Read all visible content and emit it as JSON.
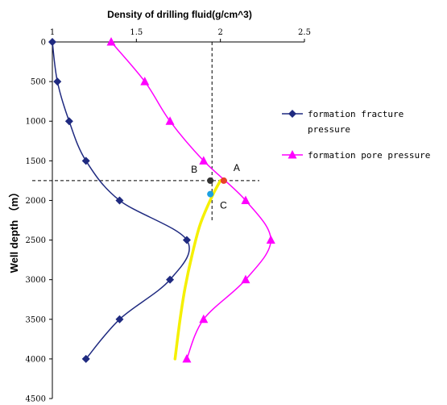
{
  "chart_data": {
    "type": "line",
    "title": "Density of drilling fluid(g/cm^3)",
    "xlabel": "",
    "ylabel": "Well depth （m）",
    "xlim": [
      1,
      2.5
    ],
    "ylim": [
      0,
      4500
    ],
    "x_ticks": [
      "1",
      "1.5",
      "2",
      "2.5"
    ],
    "y_ticks": [
      "0",
      "500",
      "1000",
      "1500",
      "2000",
      "2500",
      "3000",
      "3500",
      "4000",
      "4500"
    ],
    "y_inverted": true,
    "grid": false,
    "legend_position": "right",
    "series": [
      {
        "name": "formation fracture\npressure",
        "color": "#1f2a80",
        "marker": "diamond",
        "points": [
          {
            "x": 1.0,
            "y": 0
          },
          {
            "x": 1.03,
            "y": 500
          },
          {
            "x": 1.1,
            "y": 1000
          },
          {
            "x": 1.2,
            "y": 1500
          },
          {
            "x": 1.4,
            "y": 2000
          },
          {
            "x": 1.8,
            "y": 2500
          },
          {
            "x": 1.7,
            "y": 3000
          },
          {
            "x": 1.4,
            "y": 3500
          },
          {
            "x": 1.2,
            "y": 4000
          }
        ]
      },
      {
        "name": "formation pore pressure",
        "color": "#ff00ff",
        "marker": "triangle",
        "points": [
          {
            "x": 1.35,
            "y": 0
          },
          {
            "x": 1.55,
            "y": 500
          },
          {
            "x": 1.7,
            "y": 1000
          },
          {
            "x": 1.9,
            "y": 1500
          },
          {
            "x": 2.15,
            "y": 2000
          },
          {
            "x": 2.3,
            "y": 2500
          },
          {
            "x": 2.15,
            "y": 3000
          },
          {
            "x": 1.9,
            "y": 3500
          },
          {
            "x": 1.8,
            "y": 4000
          }
        ]
      }
    ],
    "unlabeled_curve": {
      "color": "#f5f000",
      "points": [
        {
          "x": 2.0,
          "y": 1750
        },
        {
          "x": 1.95,
          "y": 1950
        },
        {
          "x": 1.88,
          "y": 2300
        },
        {
          "x": 1.83,
          "y": 2700
        },
        {
          "x": 1.79,
          "y": 3100
        },
        {
          "x": 1.76,
          "y": 3500
        },
        {
          "x": 1.73,
          "y": 4000
        }
      ]
    },
    "reference_lines": [
      {
        "orientation": "horizontal",
        "y": 1750,
        "style": "dashed"
      },
      {
        "orientation": "vertical",
        "x": 1.95,
        "style": "dashed"
      }
    ],
    "annotations": [
      {
        "label": "A",
        "x": 2.02,
        "y": 1750,
        "color": "#e8412a"
      },
      {
        "label": "B",
        "x": 1.94,
        "y": 1750,
        "color": "#333333"
      },
      {
        "label": "C",
        "x": 1.94,
        "y": 1920,
        "color": "#1ba1e2"
      }
    ]
  }
}
